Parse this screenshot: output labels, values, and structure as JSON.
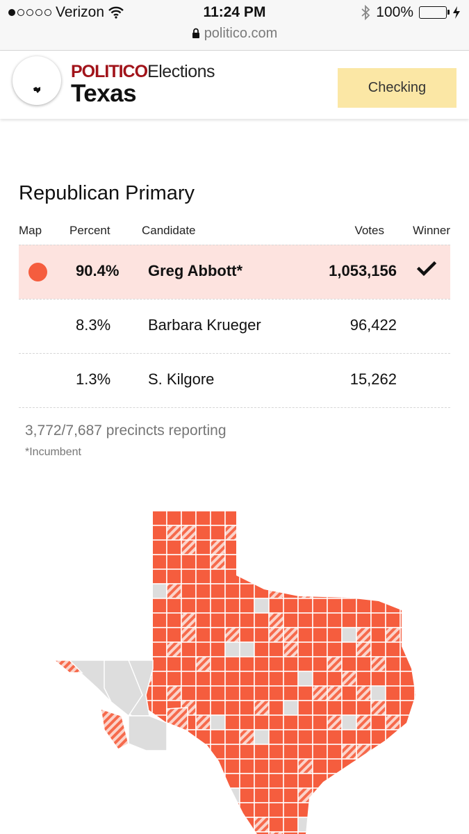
{
  "status_bar": {
    "carrier": "Verizon",
    "time": "11:24 PM",
    "battery": "100%",
    "url": "politico.com"
  },
  "header": {
    "brand_politico": "POLITICO",
    "brand_elections": "Elections",
    "state": "Texas",
    "checking_button": "Checking"
  },
  "race": {
    "title": "Republican Primary",
    "columns": {
      "map": "Map",
      "percent": "Percent",
      "candidate": "Candidate",
      "votes": "Votes",
      "winner": "Winner"
    },
    "candidates": [
      {
        "percent": "90.4%",
        "name": "Greg Abbott*",
        "votes": "1,053,156",
        "winner": true
      },
      {
        "percent": "8.3%",
        "name": "Barbara Krueger",
        "votes": "96,422",
        "winner": false
      },
      {
        "percent": "1.3%",
        "name": "S. Kilgore",
        "votes": "15,262",
        "winner": false
      }
    ],
    "precincts": "3,772/7,687 precincts reporting",
    "note": "*Incumbent"
  },
  "colors": {
    "brand_red": "#a1131a",
    "winner_color": "#f55d3e",
    "winner_row_bg": "#fde3df",
    "no_results": "#dddddd",
    "button_bg": "#fbe7a5"
  },
  "icons": [
    "wifi-icon",
    "bluetooth-icon",
    "charging-icon",
    "lock-icon",
    "checkmark-icon",
    "texas-map"
  ]
}
